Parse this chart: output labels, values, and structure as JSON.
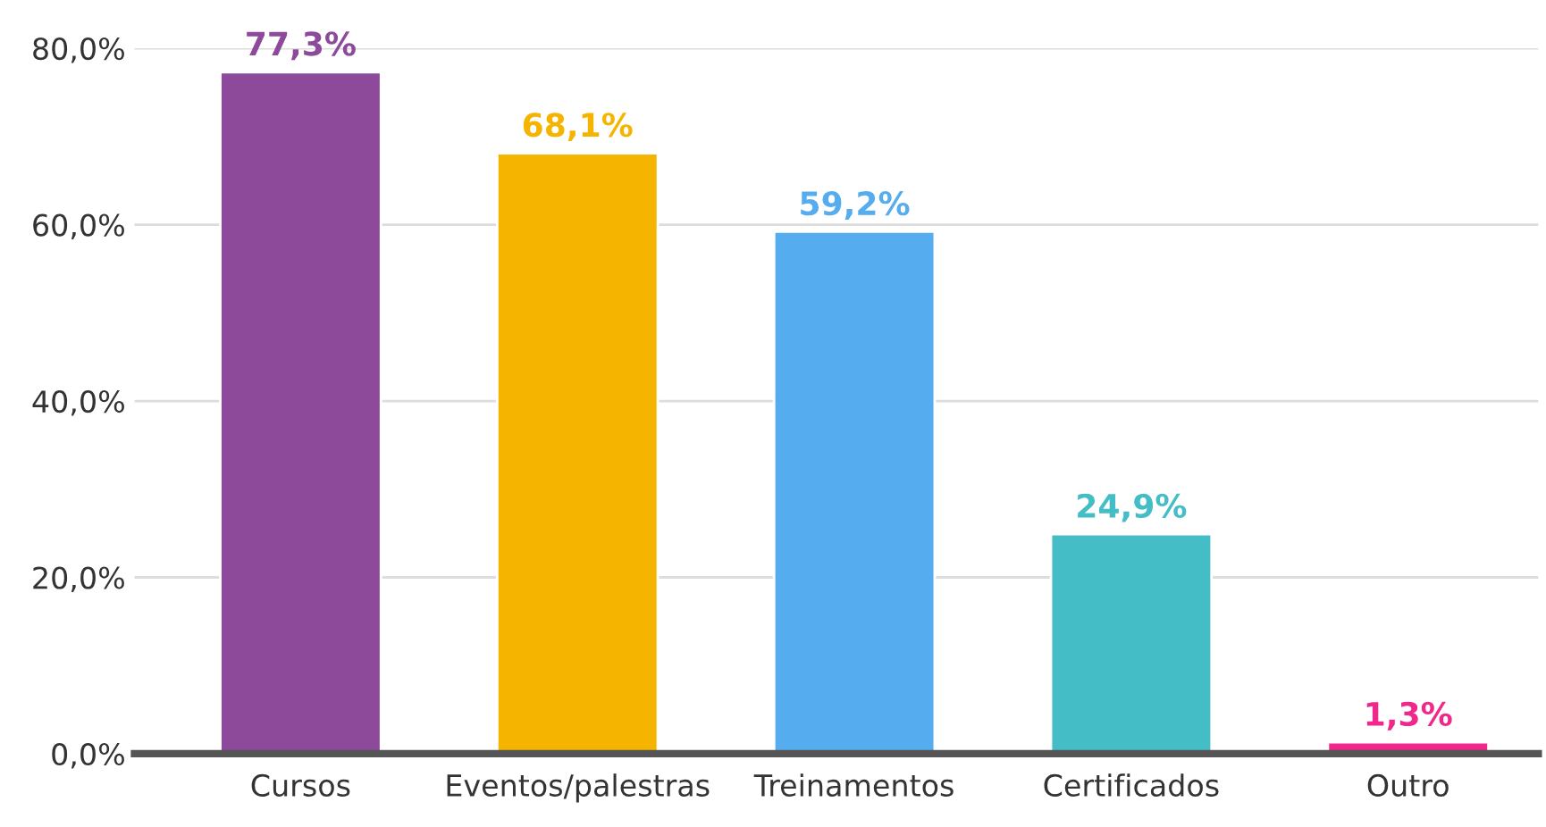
{
  "chart_data": {
    "type": "bar",
    "categories": [
      "Cursos",
      "Eventos/palestras",
      "Treinamentos",
      "Certificados",
      "Outro"
    ],
    "values": [
      77.3,
      68.1,
      59.2,
      24.9,
      1.3
    ],
    "colors": [
      "#8e4a9a",
      "#f5b400",
      "#55acee",
      "#45bdc6",
      "#f0288c"
    ],
    "value_labels": [
      "77,3%",
      "68,1%",
      "59,2%",
      "24,9%",
      "1,3%"
    ],
    "ylim": [
      0,
      80
    ],
    "yticks": [
      {
        "value": 0,
        "label": "0,0%"
      },
      {
        "value": 20,
        "label": "20,0%"
      },
      {
        "value": 40,
        "label": "40,0%"
      },
      {
        "value": 60,
        "label": "60,0%"
      },
      {
        "value": 80,
        "label": "80,0%"
      }
    ],
    "grid": "y"
  }
}
